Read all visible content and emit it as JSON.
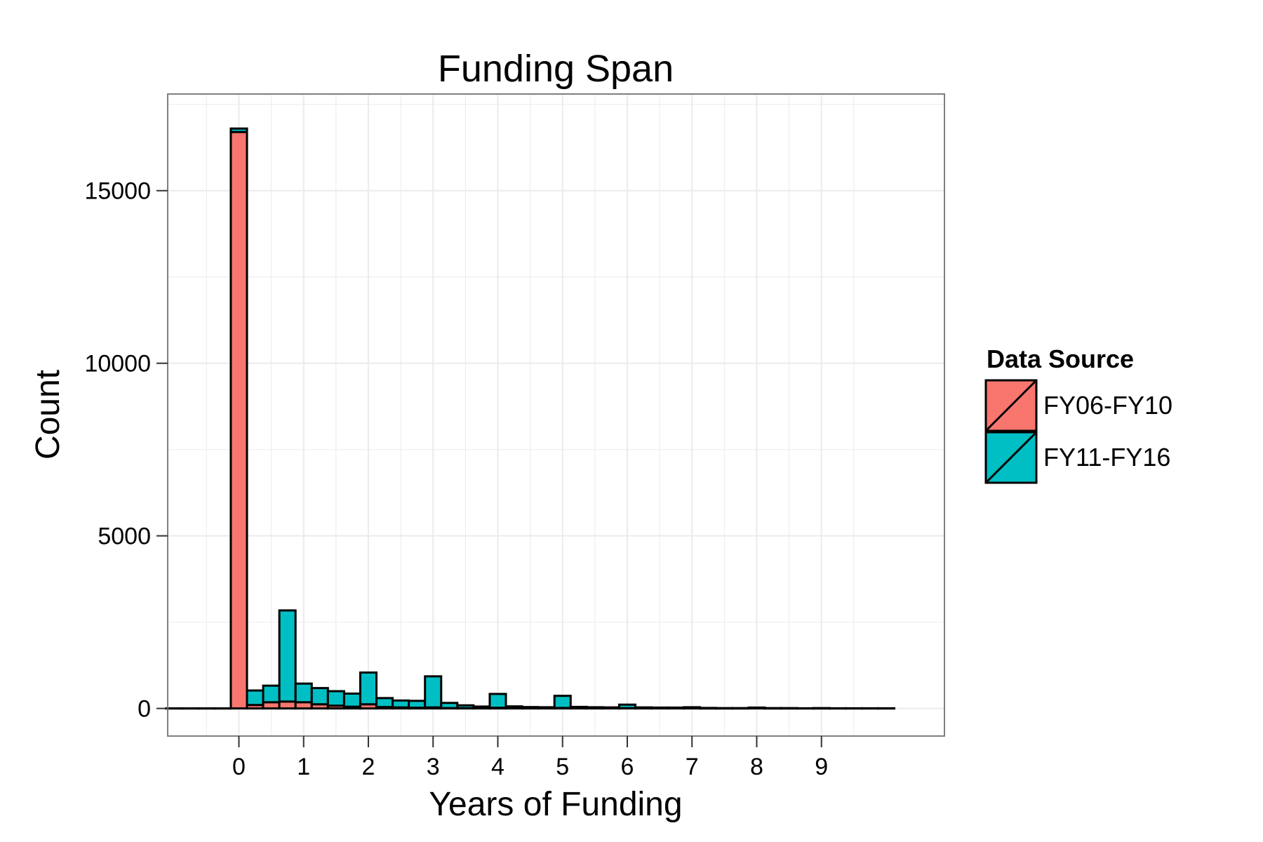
{
  "chart_data": {
    "type": "bar",
    "stacked": true,
    "title": "Funding Span",
    "xlabel": "Years of Funding",
    "ylabel": "Count",
    "xlim": [
      -1.1,
      10.9
    ],
    "ylim": [
      -800,
      17800
    ],
    "xticks": [
      "0",
      "1",
      "2",
      "3",
      "4",
      "5",
      "6",
      "7",
      "8",
      "9"
    ],
    "yticks": [
      "0",
      "5000",
      "10000",
      "15000"
    ],
    "bin_width": 0.25,
    "x": [
      -1.0,
      -0.75,
      -0.5,
      -0.25,
      0.0,
      0.25,
      0.5,
      0.75,
      1.0,
      1.25,
      1.5,
      1.75,
      2.0,
      2.25,
      2.5,
      2.75,
      3.0,
      3.25,
      3.5,
      3.75,
      4.0,
      4.25,
      4.5,
      4.75,
      5.0,
      5.25,
      5.5,
      5.75,
      6.0,
      6.25,
      6.5,
      6.75,
      7.0,
      7.25,
      7.5,
      7.75,
      8.0,
      8.25,
      8.5,
      8.75,
      9.0,
      9.25,
      9.5,
      9.75,
      10.0
    ],
    "series": [
      {
        "name": "FY06-FY10",
        "color": "#F8766D",
        "values": [
          0,
          0,
          0,
          0,
          16700,
          100,
          180,
          200,
          180,
          120,
          80,
          50,
          120,
          40,
          30,
          20,
          30,
          10,
          10,
          5,
          20,
          5,
          5,
          5,
          15,
          5,
          5,
          5,
          10,
          5,
          5,
          5,
          5,
          0,
          0,
          0,
          5,
          0,
          0,
          0,
          0,
          0,
          0,
          0,
          0
        ]
      },
      {
        "name": "FY11-FY16",
        "color": "#00BFC4",
        "values": [
          0,
          0,
          0,
          0,
          100,
          420,
          480,
          2640,
          540,
          470,
          420,
          380,
          920,
          260,
          200,
          200,
          900,
          150,
          80,
          50,
          400,
          55,
          35,
          30,
          350,
          40,
          30,
          25,
          100,
          25,
          20,
          20,
          30,
          15,
          10,
          10,
          20,
          10,
          10,
          5,
          10,
          5,
          5,
          5,
          5
        ]
      }
    ],
    "legend": {
      "title": "Data Source",
      "position": "right",
      "entries": [
        "FY06-FY10",
        "FY11-FY16"
      ]
    },
    "grid": true,
    "colors": {
      "panel_bg": "#FFFFFF",
      "grid": "#EBEBEB",
      "border": "#7F7F7F",
      "bar_outline": "#000000"
    }
  }
}
